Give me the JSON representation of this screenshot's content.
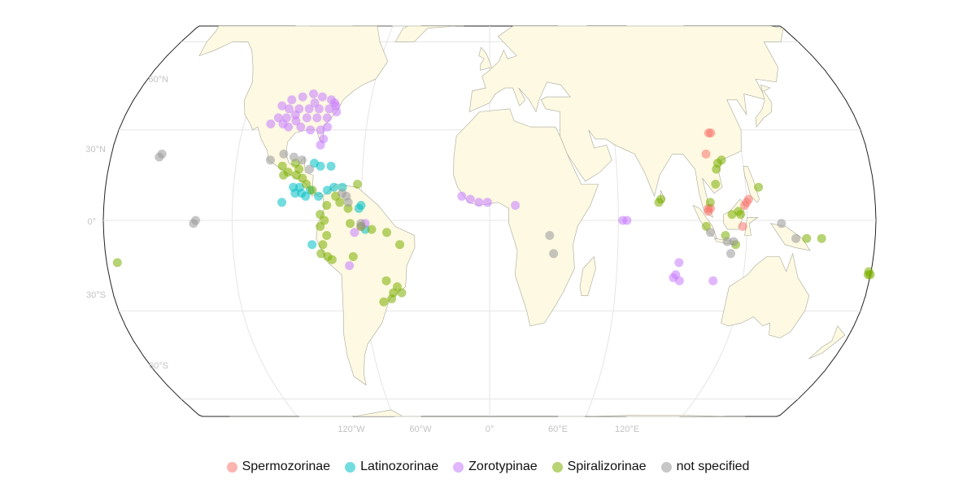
{
  "axes": {
    "lat_labels": [
      "60°N",
      "30°N",
      "0°",
      "30°S",
      "60°S"
    ],
    "lon_labels": [
      "120°W",
      "60°W",
      "0°",
      "60°E",
      "120°E"
    ]
  },
  "legend": {
    "groups": [
      {
        "key": "spermozorinae",
        "label": "Spermozorinae",
        "color": "#f8766d"
      },
      {
        "key": "latinozorinae",
        "label": "Latinozorinae",
        "color": "#00bfc4"
      },
      {
        "key": "zorotypinae",
        "label": "Zorotypinae",
        "color": "#c77cff"
      },
      {
        "key": "spiralizorinae",
        "label": "Spiralizorinae",
        "color": "#7cae00"
      },
      {
        "key": "not_specified",
        "label": "not specified",
        "color": "#999999"
      }
    ]
  },
  "chart_data": {
    "type": "scatter",
    "projection": "Robinson",
    "grid": true,
    "legend_position": "bottom",
    "series": [
      {
        "name": "Spermozorinae",
        "color": "#f8766d",
        "points": [
          [
            107,
            29
          ],
          [
            106,
            29
          ],
          [
            103,
            22
          ],
          [
            102,
            4
          ],
          [
            103,
            4
          ],
          [
            102,
            3
          ],
          [
            121,
            7
          ],
          [
            120,
            6
          ],
          [
            119,
            5
          ],
          [
            118,
            -2
          ]
        ]
      },
      {
        "name": "Latinozorinae",
        "color": "#00bfc4",
        "points": [
          [
            -83,
            19
          ],
          [
            -80,
            18
          ],
          [
            -75,
            18
          ],
          [
            -91,
            9
          ],
          [
            -88,
            9
          ],
          [
            -86,
            8
          ],
          [
            -84,
            10
          ],
          [
            -89,
            11
          ],
          [
            -92,
            11
          ],
          [
            -80,
            8
          ],
          [
            -97,
            6
          ],
          [
            -73,
            11
          ],
          [
            -69,
            11
          ],
          [
            -60,
            5
          ],
          [
            -61,
            4
          ],
          [
            -58,
            -3
          ],
          [
            -83,
            -8
          ],
          [
            -76,
            10
          ]
        ]
      },
      {
        "name": "Zorotypinae",
        "color": "#c77cff",
        "points": [
          [
            -100,
            40
          ],
          [
            -95,
            41
          ],
          [
            -90,
            42
          ],
          [
            -85,
            41
          ],
          [
            -80,
            40
          ],
          [
            -78,
            39
          ],
          [
            -104,
            38
          ],
          [
            -100,
            37
          ],
          [
            -95,
            37
          ],
          [
            -90,
            37
          ],
          [
            -85,
            37
          ],
          [
            -80,
            37
          ],
          [
            -77,
            38
          ],
          [
            -104,
            34
          ],
          [
            -100,
            34
          ],
          [
            -95,
            33
          ],
          [
            -90,
            34
          ],
          [
            -85,
            34
          ],
          [
            -80,
            34
          ],
          [
            -98,
            31
          ],
          [
            -92,
            31
          ],
          [
            -87,
            30
          ],
          [
            -82,
            30
          ],
          [
            -80,
            27
          ],
          [
            -81,
            25
          ],
          [
            -79,
            31
          ],
          [
            -76,
            36
          ],
          [
            -88,
            39
          ],
          [
            -96,
            35
          ],
          [
            -101,
            32
          ],
          [
            -107,
            32
          ],
          [
            -13,
            8
          ],
          [
            -9,
            7
          ],
          [
            -5,
            6
          ],
          [
            12,
            5
          ],
          [
            -1,
            6
          ],
          [
            62,
            0
          ],
          [
            64,
            0
          ],
          [
            87,
            -19
          ],
          [
            88,
            -18
          ],
          [
            90,
            -20
          ],
          [
            89,
            -14
          ],
          [
            106,
            -20
          ],
          [
            -60,
            -2
          ],
          [
            -63,
            -4
          ],
          [
            -66,
            -15
          ],
          [
            -58,
            -1
          ]
        ]
      },
      {
        "name": "Spiralizorinae",
        "color": "#7cae00",
        "points": [
          [
            -175,
            -14
          ],
          [
            -98,
            18
          ],
          [
            -95,
            16
          ],
          [
            -97,
            15
          ],
          [
            -91,
            15
          ],
          [
            -88,
            14
          ],
          [
            -86,
            12
          ],
          [
            -83,
            10
          ],
          [
            -72,
            8
          ],
          [
            -70,
            6
          ],
          [
            -76,
            5
          ],
          [
            -79,
            2
          ],
          [
            -77,
            0
          ],
          [
            -79,
            -2
          ],
          [
            -76,
            -5
          ],
          [
            -78,
            -8
          ],
          [
            -79,
            -11
          ],
          [
            -76,
            -12
          ],
          [
            -74,
            -13
          ],
          [
            -64,
            -12
          ],
          [
            -60,
            -2
          ],
          [
            -55,
            -3
          ],
          [
            -48,
            -4
          ],
          [
            -42,
            -8
          ],
          [
            -49,
            -20
          ],
          [
            -44,
            -22
          ],
          [
            -46,
            -24
          ],
          [
            -47,
            -26
          ],
          [
            -42,
            -24
          ],
          [
            -51,
            -27
          ],
          [
            -65,
            -1
          ],
          [
            -62,
            12
          ],
          [
            -92,
            19
          ],
          [
            -90,
            17
          ],
          [
            -66,
            4
          ],
          [
            148,
            -6
          ],
          [
            79,
            6
          ],
          [
            80,
            7
          ],
          [
            108,
            19
          ],
          [
            110,
            20
          ],
          [
            107,
            17
          ],
          [
            106,
            12
          ],
          [
            103,
            6
          ],
          [
            101,
            -2
          ],
          [
            110,
            -5
          ],
          [
            115,
            -8
          ],
          [
            116,
            3
          ],
          [
            113,
            2
          ],
          [
            117,
            2
          ],
          [
            126,
            11
          ],
          [
            155,
            -6
          ],
          [
            179,
            -17
          ],
          [
            180,
            -18
          ],
          [
            179,
            -18
          ]
        ]
      },
      {
        "name": "not specified",
        "color": "#999999",
        "points": [
          [
            -157,
            21
          ],
          [
            -156,
            22
          ],
          [
            -104,
            20
          ],
          [
            -98,
            22
          ],
          [
            -93,
            21
          ],
          [
            -89,
            20
          ],
          [
            -85,
            17
          ],
          [
            -69,
            9
          ],
          [
            -67,
            8
          ],
          [
            -66,
            6
          ],
          [
            -60,
            -1
          ],
          [
            -138,
            -1
          ],
          [
            -137,
            0
          ],
          [
            28,
            -5
          ],
          [
            30,
            -11
          ],
          [
            103,
            -4
          ],
          [
            111,
            -7
          ],
          [
            114,
            -7
          ],
          [
            113,
            -11
          ],
          [
            136,
            -1
          ],
          [
            143,
            -6
          ]
        ]
      }
    ]
  }
}
